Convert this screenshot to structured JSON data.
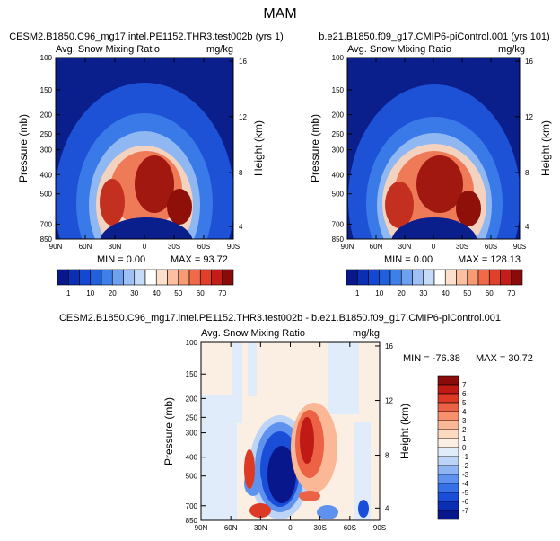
{
  "title": "MAM",
  "colors": {
    "sequential": [
      "#08188c",
      "#0a2fb4",
      "#1248d2",
      "#2160dc",
      "#3f80e8",
      "#6ea0f0",
      "#9ec0f6",
      "#c6dbf8",
      "#ffffff",
      "#fde0cc",
      "#fcc0a0",
      "#f89a72",
      "#f06a48",
      "#e0402a",
      "#c41c16",
      "#8a0c0a"
    ],
    "diverging": [
      "#08188c",
      "#0a2fb4",
      "#1a4ed8",
      "#3570e6",
      "#5e92ee",
      "#8eb4f4",
      "#bcd4f8",
      "#e0ecfa",
      "#fbeee2",
      "#fcd9c0",
      "#fbb896",
      "#f7916c",
      "#ec6244",
      "#dc3a24",
      "#c01a14",
      "#8a0c0a"
    ]
  },
  "chart_data": [
    {
      "type": "heatmap",
      "panel_title": "CESM2.B1850.C96_mg17.intel.PE1152.THR3.test002b (yrs 1)",
      "subtitle": "Avg. Snow Mixing Ratio",
      "units": "mg/kg",
      "ylabel": "Pressure (mb)",
      "ylabel_right": "Height (km)",
      "xticks": [
        "90N",
        "60N",
        "30N",
        "0",
        "30S",
        "60S",
        "90S"
      ],
      "yticks": [
        "100",
        "150",
        "200",
        "250",
        "300",
        "400",
        "500",
        "700",
        "850"
      ],
      "yticks_right": [
        "16",
        "12",
        "8",
        "4"
      ],
      "min_label": "MIN =   0.00",
      "max_label": "MAX =  93.72",
      "min": 0.0,
      "max": 93.72,
      "colorbar_labels": [
        "1",
        "10",
        "20",
        "30",
        "40",
        "50",
        "60",
        "70"
      ]
    },
    {
      "type": "heatmap",
      "panel_title": "b.e21.B1850.f09_g17.CMIP6-piControl.001 (yrs 101)",
      "subtitle": "Avg. Snow Mixing Ratio",
      "units": "mg/kg",
      "ylabel": "Pressure (mb)",
      "ylabel_right": "Height (km)",
      "xticks": [
        "90N",
        "60N",
        "30N",
        "0",
        "30S",
        "60S",
        "90S"
      ],
      "yticks": [
        "100",
        "150",
        "200",
        "250",
        "300",
        "400",
        "500",
        "700",
        "850"
      ],
      "yticks_right": [
        "16",
        "12",
        "8",
        "4"
      ],
      "min_label": "MIN =   0.00",
      "max_label": "MAX = 128.13",
      "min": 0.0,
      "max": 128.13,
      "colorbar_labels": [
        "1",
        "10",
        "20",
        "30",
        "40",
        "50",
        "60",
        "70"
      ]
    },
    {
      "type": "heatmap",
      "panel_title": "CESM2.B1850.C96_mg17.intel.PE1152.THR3.test002b - b.e21.B1850.f09_g17.CMIP6-piControl.001",
      "subtitle": "Avg. Snow Mixing Ratio",
      "units": "mg/kg",
      "ylabel": "Pressure (mb)",
      "ylabel_right": "Height (km)",
      "xticks": [
        "90N",
        "60N",
        "30N",
        "0",
        "30S",
        "60S",
        "90S"
      ],
      "yticks": [
        "100",
        "150",
        "200",
        "250",
        "300",
        "400",
        "500",
        "700",
        "850"
      ],
      "yticks_right": [
        "16",
        "12",
        "8",
        "4"
      ],
      "min_label": "MIN = -76.38",
      "max_label": "MAX =  30.72",
      "min": -76.38,
      "max": 30.72,
      "colorbar_labels": [
        "7",
        "6",
        "5",
        "4",
        "3",
        "2",
        "1",
        "0",
        "-1",
        "-2",
        "-3",
        "-4",
        "-5",
        "-6",
        "-7"
      ]
    }
  ]
}
